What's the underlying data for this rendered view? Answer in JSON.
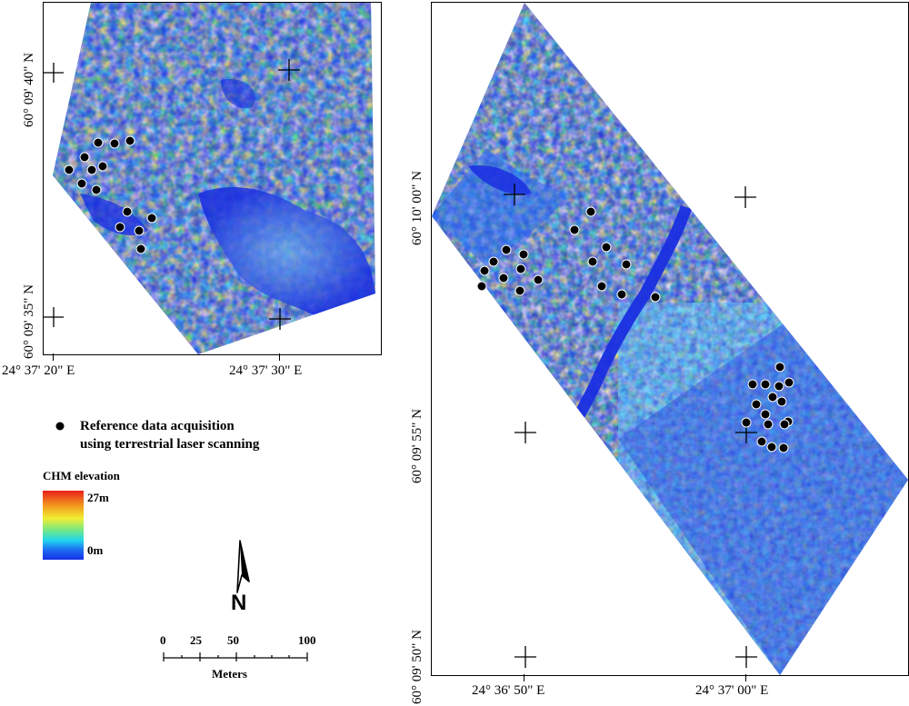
{
  "left_map": {
    "lat_labels": [
      "60° 09' 40\" N",
      "60° 09' 35\" N"
    ],
    "lon_labels": [
      "24° 37' 20\" E",
      "24° 37' 30\" E"
    ]
  },
  "right_map": {
    "lat_labels": [
      "60° 10' 00\" N",
      "60° 09' 55\" N",
      "60° 09' 50\" N"
    ],
    "lon_labels": [
      "24° 36' 50\" E",
      "24° 37' 00\" E"
    ]
  },
  "legend": {
    "reference_label_line1": "Reference data acquisition",
    "reference_label_line2": "using terrestrial laser scanning",
    "chm_title": "CHM elevation",
    "chm_max": "27m",
    "chm_min": "0m"
  },
  "scale_bar": {
    "ticks": [
      "0",
      "25",
      "50",
      "100"
    ],
    "unit": "Meters"
  },
  "north_arrow": {
    "label": "N"
  },
  "colors": {
    "chm_high": "#e8201a",
    "chm_mid": "#f2ee32",
    "chm_low": "#1630e6",
    "water": "#1a2ee0"
  },
  "left_points": [
    [
      93,
      173
    ],
    [
      108,
      157
    ],
    [
      126,
      158
    ],
    [
      143,
      155
    ],
    [
      76,
      187
    ],
    [
      101,
      187
    ],
    [
      113,
      183
    ],
    [
      90,
      202
    ],
    [
      106,
      209
    ],
    [
      140,
      233
    ],
    [
      167,
      240
    ],
    [
      132,
      250
    ],
    [
      153,
      254
    ],
    [
      155,
      274
    ]
  ],
  "right_points": [
    [
      650,
      233
    ],
    [
      632,
      253
    ],
    [
      667,
      272
    ],
    [
      557,
      275
    ],
    [
      543,
      288
    ],
    [
      576,
      280
    ],
    [
      652,
      288
    ],
    [
      533,
      298
    ],
    [
      573,
      296
    ],
    [
      689,
      291
    ],
    [
      554,
      306
    ],
    [
      592,
      308
    ],
    [
      662,
      315
    ],
    [
      530,
      315
    ],
    [
      572,
      320
    ],
    [
      684,
      324
    ],
    [
      721,
      327
    ],
    [
      858,
      404
    ],
    [
      828,
      423
    ],
    [
      842,
      423
    ],
    [
      868,
      421
    ],
    [
      857,
      425
    ],
    [
      850,
      437
    ],
    [
      832,
      445
    ],
    [
      860,
      442
    ],
    [
      842,
      456
    ],
    [
      867,
      464
    ],
    [
      821,
      465
    ],
    [
      845,
      467
    ],
    [
      863,
      467
    ],
    [
      838,
      486
    ],
    [
      849,
      492
    ],
    [
      862,
      493
    ]
  ]
}
